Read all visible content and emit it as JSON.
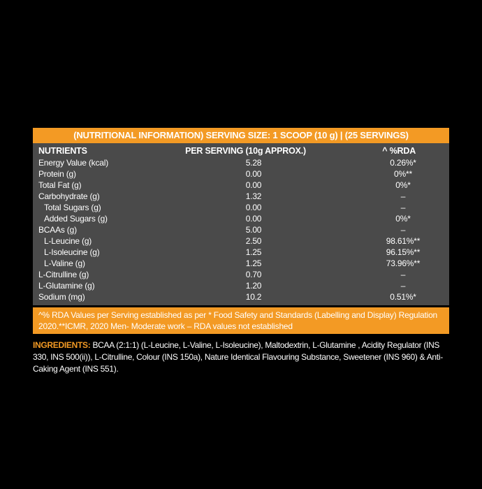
{
  "label": {
    "title": "(NUTRITIONAL INFORMATION) SERVING SIZE: 1 SCOOP (10 g) | (25 SERVINGS)",
    "columns": [
      "NUTRIENTS",
      "PER SERVING (10g APPROX.)",
      "^ %RDA"
    ],
    "rows": [
      [
        "Energy Value (kcal)",
        "5.28",
        "0.26%*"
      ],
      [
        "Protein (g)",
        "0.00",
        "0%**"
      ],
      [
        "Total Fat (g)",
        "0.00",
        "0%*"
      ],
      [
        "Carbohydrate (g)",
        "1.32",
        "–"
      ],
      [
        "Total Sugars (g)",
        "0.00",
        "–"
      ],
      [
        "Added Sugars (g)",
        "0.00",
        "0%*"
      ],
      [
        "BCAAs (g)",
        "5.00",
        "–"
      ],
      [
        "L-Leucine (g)",
        "2.50",
        "98.61%**"
      ],
      [
        "L-Isoleucine (g)",
        "1.25",
        "96.15%**"
      ],
      [
        "L-Valine (g)",
        "1.25",
        "73.96%**"
      ],
      [
        "L-Citrulline (g)",
        "0.70",
        "–"
      ],
      [
        "L-Glutamine (g)",
        "1.20",
        "–"
      ],
      [
        "Sodium (mg)",
        "10.2",
        "0.51%*"
      ]
    ],
    "footnote": "^% RDA Values per Serving established as per * Food Safety and Standards (Labelling and Display) Regulation 2020.**ICMR, 2020 Men- Moderate work  – RDA values not established",
    "ingredients_label": "INGREDIENTS:",
    "ingredients": "BCAA (2:1:1) (L-Leucine, L-Valine, L-Isoleucine), Maltodextrin, L-Glutamine , Acidity Regulator (INS 330, INS 500(ii)), L-Citrulline, Colour (INS 150a), Nature Identical Flavouring Substance, Sweetener (INS 960) & Anti-Caking Agent (INS 551)."
  }
}
